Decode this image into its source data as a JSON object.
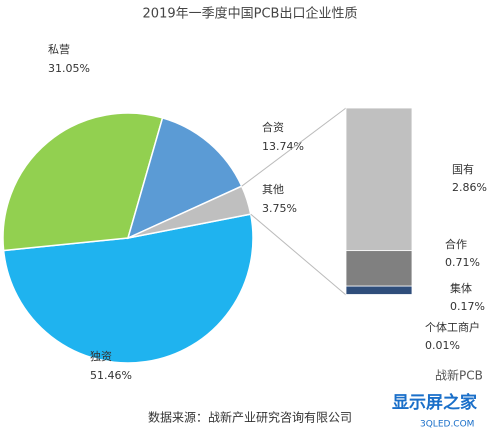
{
  "chart_data": {
    "type": "pie-of-bar",
    "title": "2019年一季度中国PCB出口企业性质",
    "categories": [
      "独资",
      "私营",
      "合资",
      "其他"
    ],
    "values": [
      51.46,
      31.05,
      13.74,
      3.75
    ],
    "value_labels": [
      "51.46%",
      "31.05%",
      "13.74%",
      "3.75%"
    ],
    "colors": [
      "#1fb3ef",
      "#92d050",
      "#5b9bd5",
      "#bfbfbf"
    ],
    "breakdown": {
      "type": "bar",
      "categories": [
        "国有",
        "合作",
        "集体",
        "个体工商户"
      ],
      "values": [
        2.86,
        0.71,
        0.17,
        0.01
      ],
      "value_labels": [
        "2.86%",
        "0.71%",
        "0.17%",
        "0.01%"
      ],
      "colors": [
        "#c0c0c0",
        "#808080",
        "#2f4e7b",
        "#1f3350"
      ]
    },
    "source": "数据来源：战新产业研究咨询有限公司",
    "watermarks": [
      "战新PCB",
      "显示屏之家",
      "3QLED.COM"
    ]
  }
}
